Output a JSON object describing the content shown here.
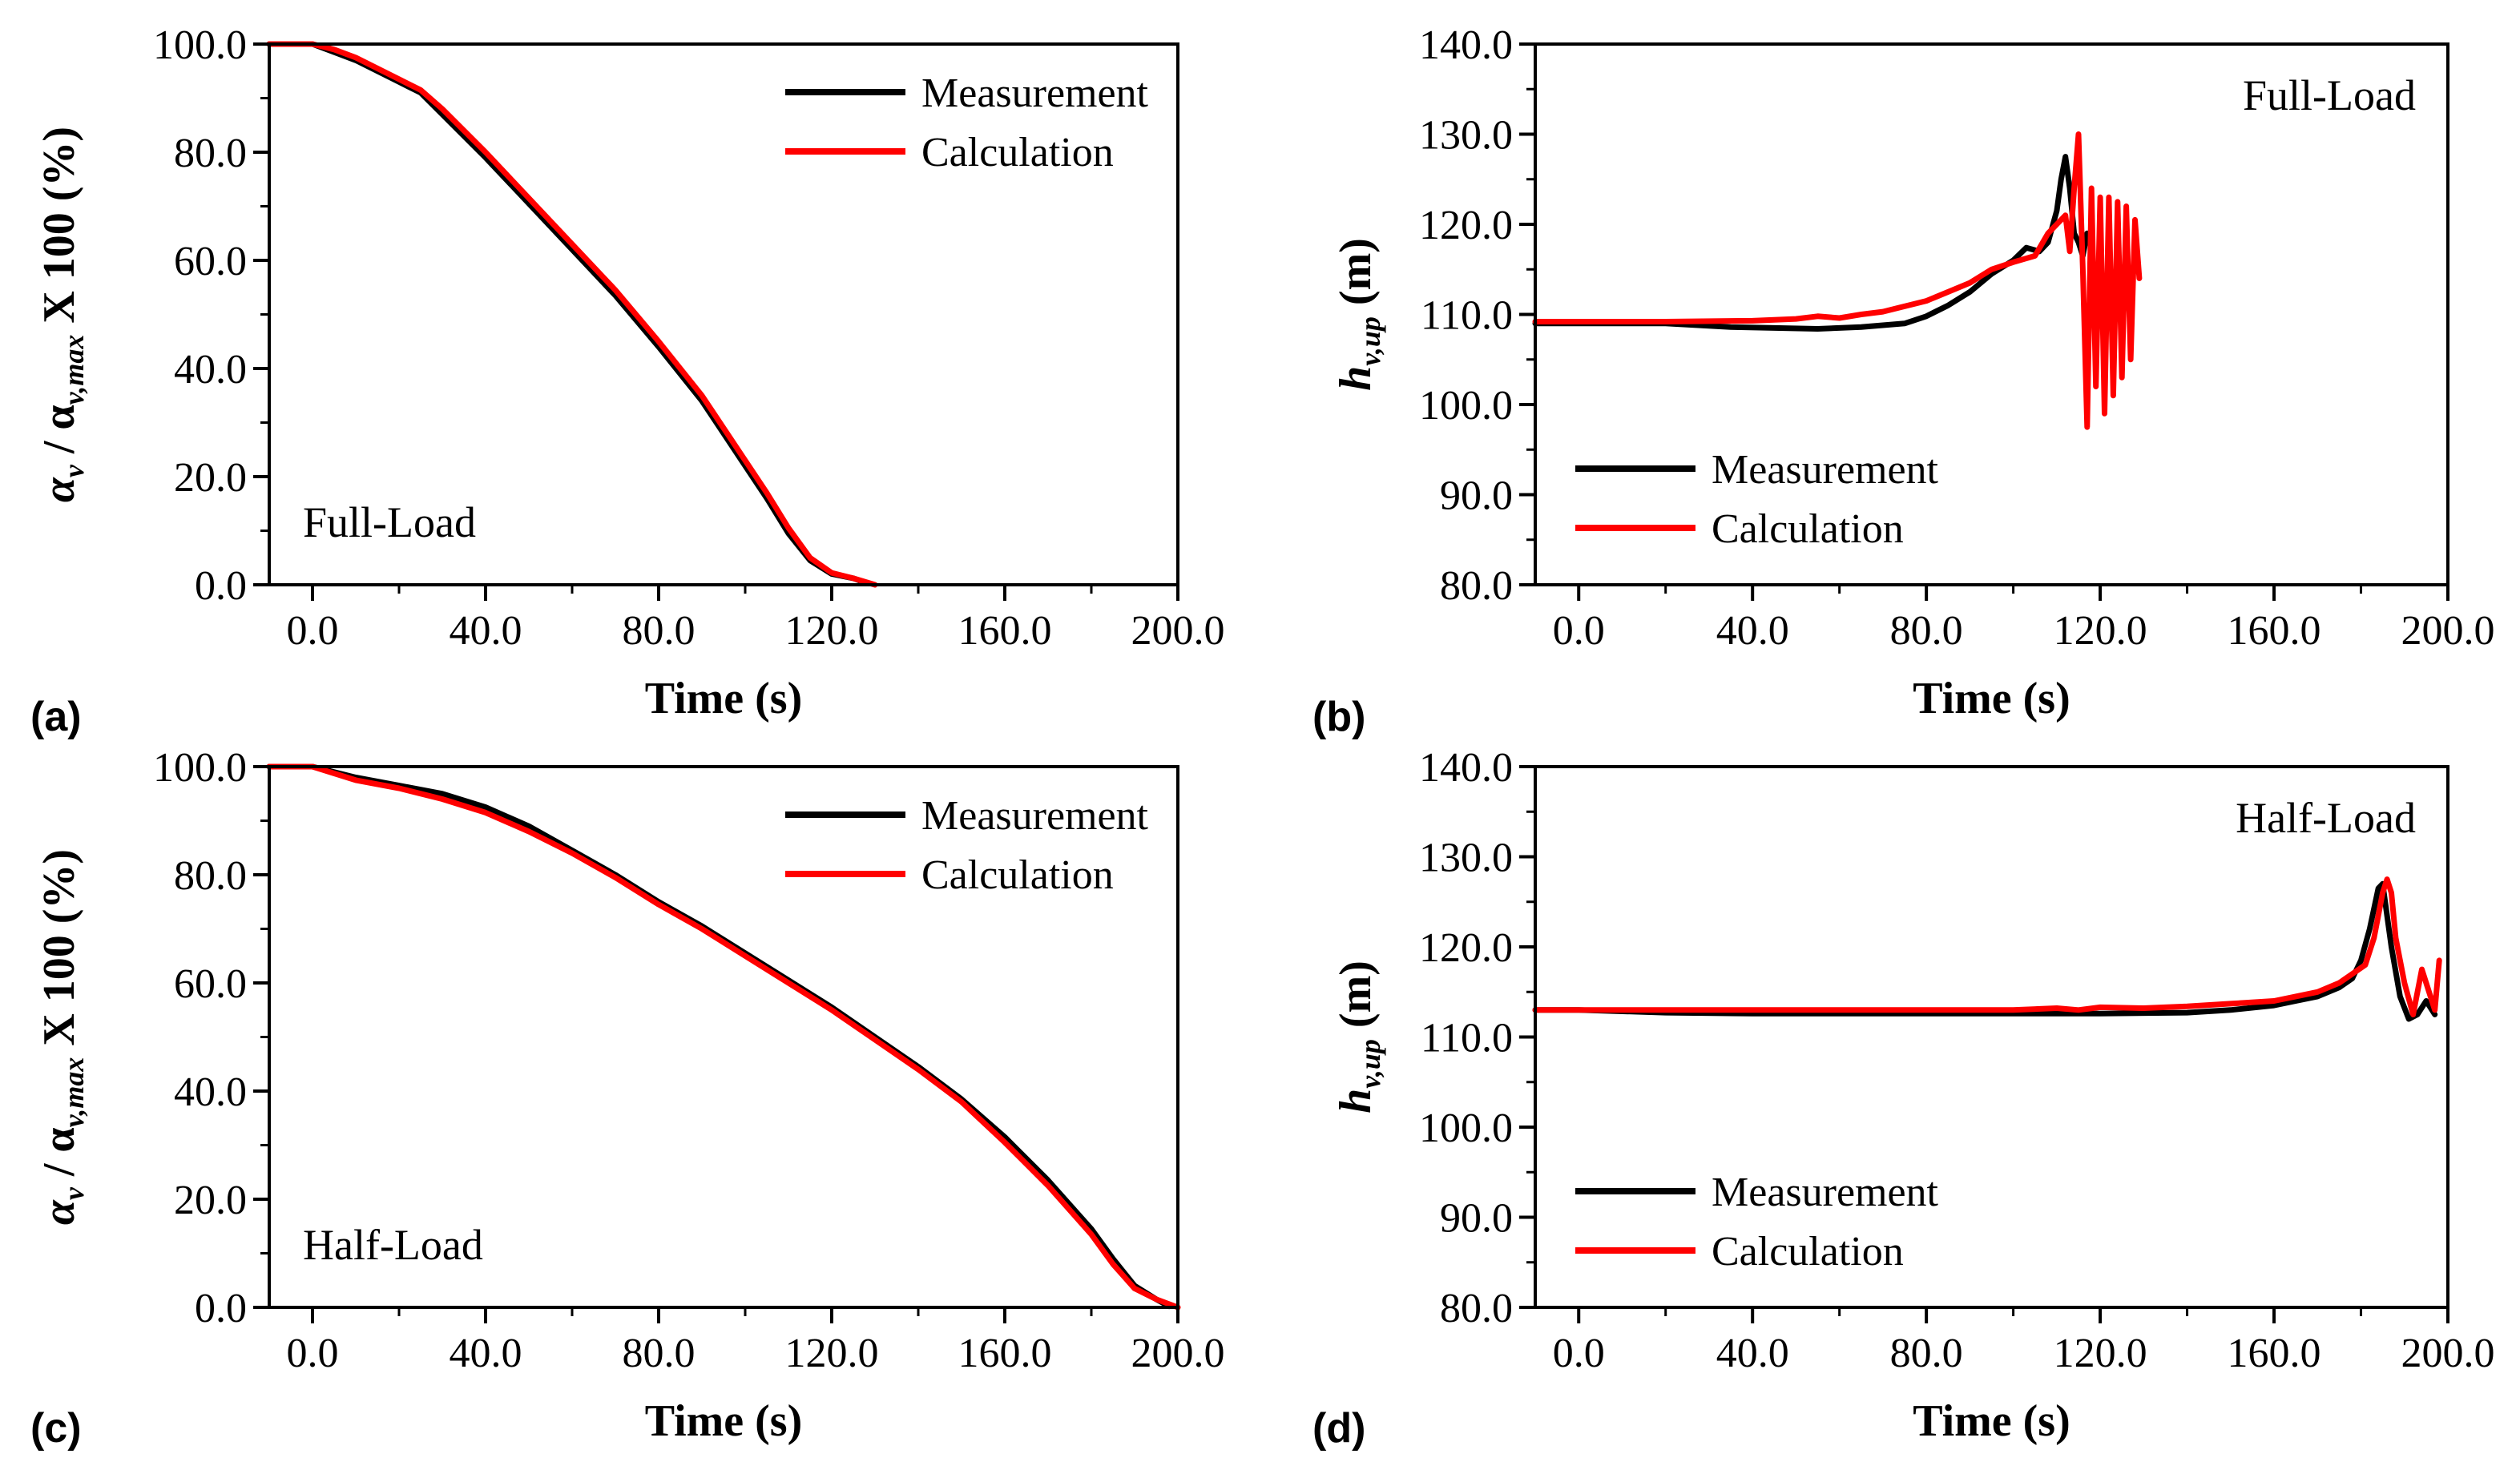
{
  "colors": {
    "measurement": "#000000",
    "calculation": "#ff0000",
    "axis": "#000000"
  },
  "chart_data": [
    {
      "panel": "(a)",
      "type": "line",
      "xlabel": "Time (s)",
      "ylabel": {
        "main": "α",
        "sub1": "v",
        "mid": " / α",
        "sub2": "v,max",
        "tail": " X 100 (%)"
      },
      "xlim": [
        -10,
        200
      ],
      "ylim": [
        0,
        100
      ],
      "xticks": [
        0,
        40,
        80,
        120,
        160,
        200
      ],
      "xtick_labels": [
        "0.0",
        "40.0",
        "80.0",
        "120.0",
        "160.0",
        "200.0"
      ],
      "yticks": [
        0,
        20,
        40,
        60,
        80,
        100
      ],
      "ytick_labels": [
        "0.0",
        "20.0",
        "40.0",
        "60.0",
        "80.0",
        "100.0"
      ],
      "annotation": "Full-Load",
      "annotation_position": "bottom-left",
      "legend": [
        "Measurement",
        "Calculation"
      ],
      "legend_position": "top-right",
      "series": [
        {
          "name": "Measurement",
          "x": [
            -10,
            0,
            5,
            10,
            15,
            20,
            25,
            30,
            40,
            50,
            60,
            70,
            80,
            90,
            100,
            105,
            110,
            115,
            120,
            125,
            128
          ],
          "y": [
            100,
            100,
            98.5,
            97,
            95,
            93,
            91,
            87,
            79,
            70.5,
            62,
            53.5,
            44,
            34,
            22,
            16,
            9.5,
            4.5,
            2,
            1.2,
            0.3
          ]
        },
        {
          "name": "Calculation",
          "x": [
            -10,
            0,
            5,
            10,
            15,
            20,
            25,
            30,
            40,
            50,
            60,
            70,
            80,
            90,
            100,
            105,
            110,
            115,
            120,
            125,
            130
          ],
          "y": [
            100,
            100,
            99,
            97.5,
            95.5,
            93.5,
            91.5,
            88,
            80,
            71.5,
            63,
            54.5,
            45,
            35,
            23,
            17,
            10.5,
            5,
            2.2,
            1.2,
            0
          ]
        }
      ]
    },
    {
      "panel": "(b)",
      "type": "line",
      "xlabel": "Time (s)",
      "ylabel": {
        "main": "h",
        "sub1": "v,up",
        "tail": " (m)"
      },
      "xlim": [
        -10,
        200
      ],
      "ylim": [
        80,
        140
      ],
      "xticks": [
        0,
        40,
        80,
        120,
        160,
        200
      ],
      "xtick_labels": [
        "0.0",
        "40.0",
        "80.0",
        "120.0",
        "160.0",
        "200.0"
      ],
      "yticks": [
        80,
        90,
        100,
        110,
        120,
        130,
        140
      ],
      "ytick_labels": [
        "80.0",
        "90.0",
        "100.0",
        "110.0",
        "120.0",
        "130.0",
        "140.0"
      ],
      "annotation": "Full-Load",
      "annotation_position": "top-right",
      "legend": [
        "Measurement",
        "Calculation"
      ],
      "legend_position": "bottom-left",
      "series": [
        {
          "name": "Measurement",
          "x": [
            -10,
            0,
            20,
            35,
            45,
            55,
            65,
            75,
            80,
            85,
            90,
            95,
            100,
            103,
            106,
            108,
            110,
            111,
            112,
            113,
            114,
            115,
            116,
            117,
            118
          ],
          "y": [
            109,
            109,
            109,
            108.6,
            108.5,
            108.4,
            108.6,
            109,
            109.8,
            111,
            112.5,
            114.5,
            116,
            117.4,
            117,
            118,
            121.5,
            125,
            127.5,
            124,
            119,
            118,
            116.5,
            119,
            118
          ]
        },
        {
          "name": "Calculation",
          "x": [
            -10,
            0,
            20,
            40,
            50,
            55,
            60,
            65,
            70,
            80,
            85,
            90,
            95,
            100,
            105,
            108,
            110,
            112,
            113,
            114,
            115,
            116,
            117,
            118,
            119,
            120,
            121,
            122,
            123,
            124,
            125,
            126,
            127,
            128,
            129
          ],
          "y": [
            109.2,
            109.2,
            109.2,
            109.3,
            109.5,
            109.8,
            109.6,
            110,
            110.3,
            111.5,
            112.5,
            113.5,
            115,
            115.8,
            116.5,
            119,
            120,
            121,
            117,
            124,
            130,
            115,
            97.5,
            124,
            102,
            123,
            99,
            123,
            101,
            122.5,
            103,
            122,
            105,
            120.5,
            114
          ]
        }
      ]
    },
    {
      "panel": "(c)",
      "type": "line",
      "xlabel": "Time (s)",
      "ylabel": {
        "main": "α",
        "sub1": "v",
        "mid": " / α",
        "sub2": "v,max",
        "tail": " X 100 (%)"
      },
      "xlim": [
        -10,
        200
      ],
      "ylim": [
        0,
        100
      ],
      "xticks": [
        0,
        40,
        80,
        120,
        160,
        200
      ],
      "xtick_labels": [
        "0.0",
        "40.0",
        "80.0",
        "120.0",
        "160.0",
        "200.0"
      ],
      "yticks": [
        0,
        20,
        40,
        60,
        80,
        100
      ],
      "ytick_labels": [
        "0.0",
        "20.0",
        "40.0",
        "60.0",
        "80.0",
        "100.0"
      ],
      "annotation": "Half-Load",
      "annotation_position": "bottom-left",
      "legend": [
        "Measurement",
        "Calculation"
      ],
      "legend_position": "top-right",
      "series": [
        {
          "name": "Measurement",
          "x": [
            -10,
            0,
            10,
            20,
            30,
            40,
            50,
            60,
            70,
            80,
            90,
            100,
            110,
            120,
            130,
            140,
            150,
            160,
            170,
            180,
            185,
            190,
            195,
            198
          ],
          "y": [
            100,
            100,
            98,
            96.5,
            95,
            92.5,
            89,
            84.5,
            80,
            75,
            70.5,
            65.5,
            60.5,
            55.5,
            50,
            44.5,
            38.5,
            31.5,
            23.5,
            14.5,
            9,
            4,
            1.5,
            0.2
          ]
        },
        {
          "name": "Calculation",
          "x": [
            -10,
            0,
            10,
            20,
            30,
            40,
            50,
            60,
            70,
            80,
            90,
            100,
            110,
            120,
            130,
            140,
            150,
            160,
            170,
            180,
            185,
            190,
            195,
            200
          ],
          "y": [
            100,
            100,
            97.5,
            96,
            94,
            91.5,
            88,
            84,
            79.5,
            74.5,
            70,
            65,
            60,
            55,
            49.5,
            44,
            38,
            30.5,
            22.5,
            13.5,
            8,
            3.5,
            1.5,
            0
          ]
        }
      ]
    },
    {
      "panel": "(d)",
      "type": "line",
      "xlabel": "Time (s)",
      "ylabel": {
        "main": "h",
        "sub1": "v,up",
        "tail": " (m)"
      },
      "xlim": [
        -10,
        200
      ],
      "ylim": [
        80,
        140
      ],
      "xticks": [
        0,
        40,
        80,
        120,
        160,
        200
      ],
      "xtick_labels": [
        "0.0",
        "40.0",
        "80.0",
        "120.0",
        "160.0",
        "200.0"
      ],
      "yticks": [
        80,
        90,
        100,
        110,
        120,
        130,
        140
      ],
      "ytick_labels": [
        "80.0",
        "90.0",
        "100.0",
        "110.0",
        "120.0",
        "130.0",
        "140.0"
      ],
      "annotation": "Half-Load",
      "annotation_position": "top-right",
      "legend": [
        "Measurement",
        "Calculation"
      ],
      "legend_position": "bottom-left",
      "series": [
        {
          "name": "Measurement",
          "x": [
            -10,
            0,
            20,
            40,
            60,
            80,
            100,
            120,
            140,
            150,
            160,
            165,
            170,
            175,
            178,
            180,
            182,
            184,
            185,
            187,
            189,
            191,
            193,
            195,
            197
          ],
          "y": [
            113,
            113,
            112.7,
            112.6,
            112.6,
            112.6,
            112.6,
            112.6,
            112.7,
            113,
            113.5,
            114,
            114.5,
            115.5,
            116.5,
            118.5,
            122,
            126.5,
            127,
            120,
            114.5,
            112,
            112.5,
            114,
            112.5
          ]
        },
        {
          "name": "Calculation",
          "x": [
            -10,
            0,
            20,
            40,
            60,
            80,
            100,
            110,
            115,
            120,
            130,
            140,
            150,
            160,
            165,
            170,
            175,
            178,
            181,
            183,
            185,
            186,
            187,
            188,
            190,
            192,
            194,
            195,
            197,
            198
          ],
          "y": [
            113,
            113,
            113,
            113,
            113,
            113,
            113,
            113.2,
            113,
            113.3,
            113.2,
            113.4,
            113.7,
            114,
            114.5,
            115,
            116,
            117,
            118,
            121,
            126,
            127.5,
            126,
            121,
            116,
            112.5,
            117.5,
            116,
            113,
            118.5
          ]
        }
      ]
    }
  ]
}
